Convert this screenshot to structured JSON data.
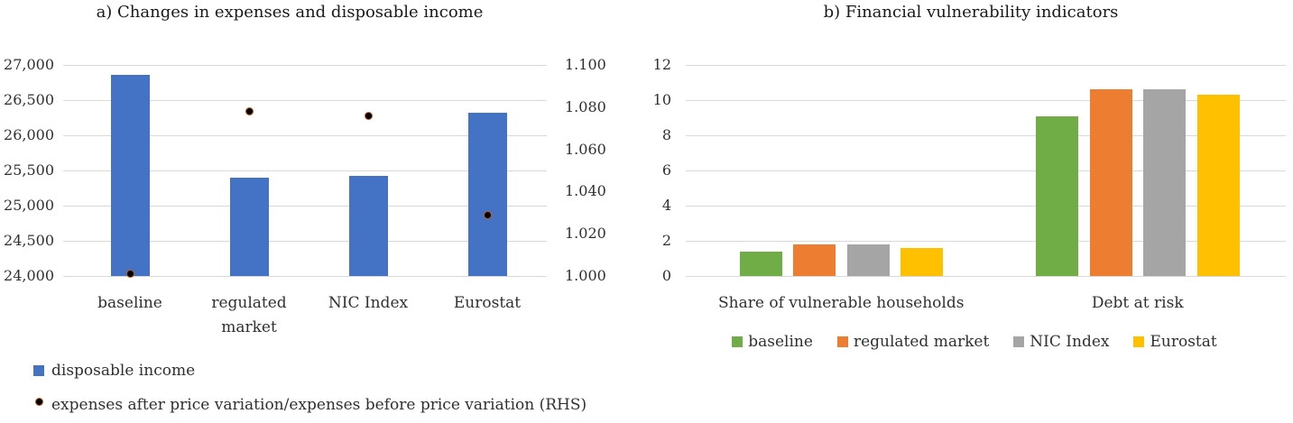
{
  "chart_data": [
    {
      "type": "bar",
      "title": "a) Changes in expenses and disposable income",
      "categories": [
        "baseline",
        "regulated market",
        "NIC Index",
        "Eurostat"
      ],
      "series": [
        {
          "name": "disposable income",
          "type": "bar",
          "color": "#4472C4",
          "values": [
            26860,
            25400,
            25420,
            26320
          ]
        },
        {
          "name": "expenses after price variation/expenses before price variation (RHS)",
          "type": "scatter",
          "secondary_axis": true,
          "color": "#000000",
          "edge_color": "#C55A11",
          "values": [
            1.001,
            1.078,
            1.076,
            1.029
          ]
        }
      ],
      "y_axis": {
        "ylim": [
          24000,
          27000
        ],
        "ticks": [
          "24,000",
          "24,500",
          "25,000",
          "25,500",
          "26,000",
          "26,500",
          "27,000"
        ]
      },
      "y2_axis": {
        "ylim": [
          1.0,
          1.1
        ],
        "ticks": [
          "1.000",
          "1.020",
          "1.040",
          "1.060",
          "1.080",
          "1.100"
        ]
      },
      "grid": true,
      "legend": "bottom-left"
    },
    {
      "type": "bar",
      "title": "b) Financial vulnerability indicators",
      "categories": [
        "Share of vulnerable households",
        "Debt at risk"
      ],
      "series": [
        {
          "name": "baseline",
          "color": "#70AD47",
          "values": [
            1.4,
            9.1
          ]
        },
        {
          "name": "regulated market",
          "color": "#ED7D31",
          "values": [
            1.8,
            10.6
          ]
        },
        {
          "name": "NIC Index",
          "color": "#A5A5A5",
          "values": [
            1.8,
            10.6
          ]
        },
        {
          "name": "Eurostat",
          "color": "#FFC000",
          "values": [
            1.6,
            10.3
          ]
        }
      ],
      "y_axis": {
        "ylim": [
          0,
          12
        ],
        "ticks": [
          "0",
          "2",
          "4",
          "6",
          "8",
          "10",
          "12"
        ]
      },
      "grid": true,
      "legend": "bottom"
    }
  ]
}
